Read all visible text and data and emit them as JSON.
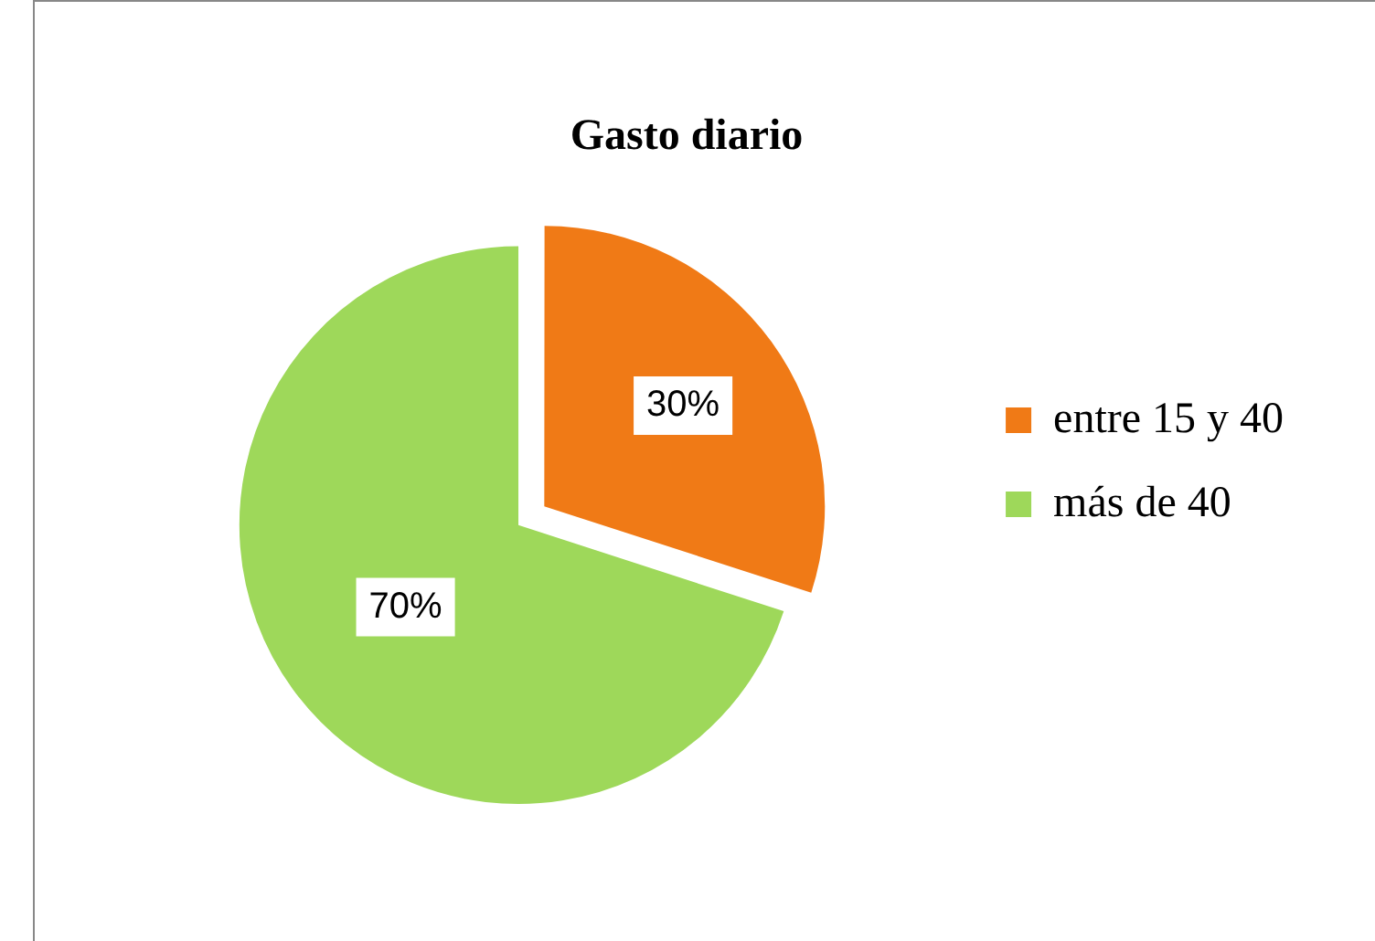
{
  "chart_data": {
    "type": "pie",
    "title": "Gasto diario",
    "categories": [
      "entre 15 y 40",
      "más de 40"
    ],
    "values": [
      30,
      70
    ],
    "colors": [
      "#f07a16",
      "#9ed85a"
    ],
    "value_labels": [
      "30%",
      "70%"
    ],
    "legend": "right"
  }
}
